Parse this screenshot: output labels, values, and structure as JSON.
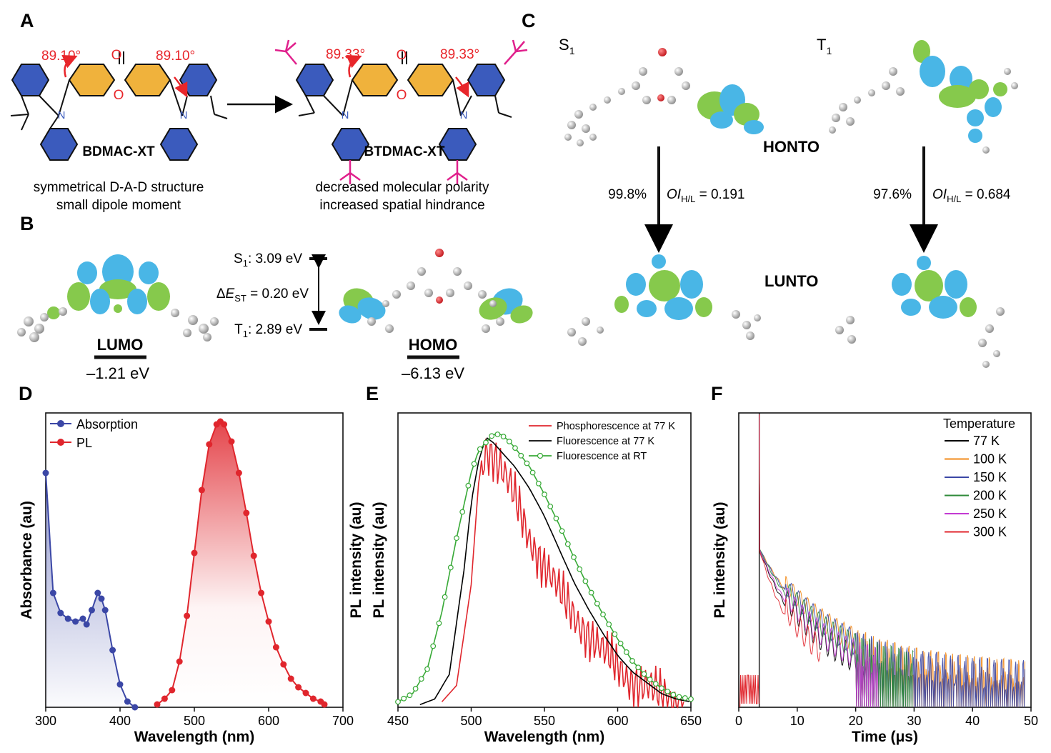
{
  "panel_labels": {
    "a": "A",
    "b": "B",
    "c": "C",
    "d": "D",
    "e": "E",
    "f": "F"
  },
  "panel_a": {
    "mol1_name": "BDMAC-XT",
    "mol2_name": "BTDMAC-XT",
    "mol1_angle": "89.10°",
    "mol2_angle": "89.33°",
    "o_atom": "O",
    "n_atom": "N",
    "mol1_desc_1": "symmetrical D-A-D structure",
    "mol1_desc_2": "small dipole moment",
    "mol2_desc_1": "decreased molecular polarity",
    "mol2_desc_2": "increased spatial hindrance"
  },
  "panel_b": {
    "lumo_label": "LUMO",
    "lumo_energy": "–1.21 eV",
    "homo_label": "HOMO",
    "homo_energy": "–6.13 eV",
    "s1_state": "S",
    "s1_sub": "1",
    "s1_value": ": 3.09 eV",
    "t1_state": "T",
    "t1_sub": "1",
    "t1_value": ": 2.89 eV",
    "dest_prefix": "Δ",
    "dest_e": "E",
    "dest_sub": "ST",
    "dest_value": " = 0.20 eV"
  },
  "panel_c": {
    "s1_state": "S",
    "s1_sub": "1",
    "t1_state": "T",
    "t1_sub": "1",
    "honto": "HONTO",
    "lunto": "LUNTO",
    "s1_pct": "99.8%",
    "t1_pct": "97.6%",
    "oi_prefix": "OI",
    "oi_sub": "H/L",
    "s1_oi": " = 0.191",
    "t1_oi": " = 0.684"
  },
  "colors": {
    "donor_blue": "#3b5bbd",
    "acceptor_orange": "#f0b23c",
    "angle_red": "#e8262b",
    "tbutyl_magenta": "#e0208c",
    "lobe_blue": "#49b6e6",
    "lobe_green": "#86c94c",
    "absorption": "#3b47a6",
    "pl": "#e0262d",
    "phos": "#e0262d",
    "fluor77": "#000000",
    "fluorRT": "#37a936"
  },
  "chart_data": [
    {
      "panel": "D",
      "type": "line",
      "xlabel": "Wavelength (nm)",
      "ylabel": "Absorbance (au)",
      "xlim": [
        300,
        700
      ],
      "xticks": [
        300,
        400,
        500,
        600,
        700
      ],
      "legend_position": "top-left",
      "series": [
        {
          "name": "Absorption",
          "color": "#3b47a6",
          "x": [
            300,
            310,
            320,
            330,
            340,
            350,
            355,
            362,
            370,
            375,
            380,
            390,
            400,
            410,
            420
          ],
          "y": [
            0.82,
            0.4,
            0.33,
            0.31,
            0.3,
            0.31,
            0.29,
            0.34,
            0.4,
            0.38,
            0.34,
            0.2,
            0.08,
            0.02,
            0.0
          ]
        },
        {
          "name": "PL",
          "color": "#e0262d",
          "x": [
            450,
            460,
            470,
            480,
            490,
            500,
            510,
            520,
            530,
            535,
            540,
            550,
            560,
            570,
            580,
            590,
            600,
            610,
            620,
            630,
            640,
            650,
            660,
            670,
            675
          ],
          "y": [
            0.01,
            0.03,
            0.06,
            0.16,
            0.32,
            0.54,
            0.76,
            0.92,
            0.99,
            1.0,
            0.99,
            0.93,
            0.82,
            0.68,
            0.53,
            0.4,
            0.3,
            0.21,
            0.15,
            0.1,
            0.07,
            0.05,
            0.03,
            0.02,
            0.01
          ]
        }
      ]
    },
    {
      "panel": "E",
      "type": "line",
      "xlabel": "Wavelength (nm)",
      "ylabel": "PL intensity (au)",
      "xlim": [
        450,
        650
      ],
      "xticks": [
        450,
        500,
        550,
        600,
        650
      ],
      "legend_position": "top-right",
      "series": [
        {
          "name": "Phosphorescence at 77 K",
          "color": "#e0262d",
          "x": [
            480,
            490,
            500,
            505,
            510,
            515,
            520,
            530,
            540,
            550,
            560,
            570,
            580,
            590,
            600,
            610,
            620,
            630,
            640,
            645
          ],
          "y": [
            0.02,
            0.08,
            0.45,
            0.82,
            0.95,
            0.93,
            0.88,
            0.76,
            0.62,
            0.52,
            0.42,
            0.34,
            0.27,
            0.2,
            0.15,
            0.1,
            0.07,
            0.04,
            0.02,
            0.01
          ]
        },
        {
          "name": "Fluorescence at 77 K",
          "color": "#000000",
          "x": [
            465,
            475,
            485,
            495,
            500,
            505,
            510,
            515,
            520,
            530,
            540,
            550,
            560,
            570,
            580,
            590,
            600,
            610,
            620,
            630,
            640,
            650
          ],
          "y": [
            0.01,
            0.03,
            0.12,
            0.5,
            0.75,
            0.9,
            0.99,
            0.97,
            0.94,
            0.88,
            0.8,
            0.7,
            0.58,
            0.46,
            0.36,
            0.27,
            0.19,
            0.13,
            0.09,
            0.05,
            0.03,
            0.02
          ]
        },
        {
          "name": "Fluorescence at RT",
          "color": "#37a936",
          "x": [
            450,
            460,
            470,
            480,
            490,
            500,
            505,
            510,
            515,
            520,
            525,
            530,
            540,
            550,
            560,
            570,
            580,
            590,
            600,
            610,
            620,
            630,
            640,
            650
          ],
          "y": [
            0.02,
            0.05,
            0.14,
            0.35,
            0.62,
            0.86,
            0.94,
            0.97,
            1.0,
            1.0,
            0.98,
            0.95,
            0.88,
            0.78,
            0.67,
            0.55,
            0.44,
            0.34,
            0.25,
            0.17,
            0.11,
            0.07,
            0.04,
            0.03
          ]
        }
      ]
    },
    {
      "panel": "F",
      "type": "line",
      "xlabel": "Time (μs)",
      "ylabel": "PL intensity (au)",
      "xlim": [
        0,
        50
      ],
      "xticks": [
        0,
        10,
        20,
        30,
        40,
        50
      ],
      "yscale": "log",
      "legend_title": "Temperature",
      "legend_position": "top-right",
      "series": [
        {
          "name": "77 K",
          "color": "#000000",
          "tail_end": 22,
          "decay": 0.11
        },
        {
          "name": "100 K",
          "color": "#f28a1a",
          "tail_end": 49,
          "decay": 0.075
        },
        {
          "name": "150 K",
          "color": "#3b47a6",
          "tail_end": 49,
          "decay": 0.078
        },
        {
          "name": "200 K",
          "color": "#2f8a3a",
          "tail_end": 30,
          "decay": 0.085
        },
        {
          "name": "250 K",
          "color": "#c33ad2",
          "tail_end": 24,
          "decay": 0.1
        },
        {
          "name": "300 K",
          "color": "#e0262d",
          "tail_end": 14,
          "decay": 0.14
        }
      ]
    }
  ]
}
